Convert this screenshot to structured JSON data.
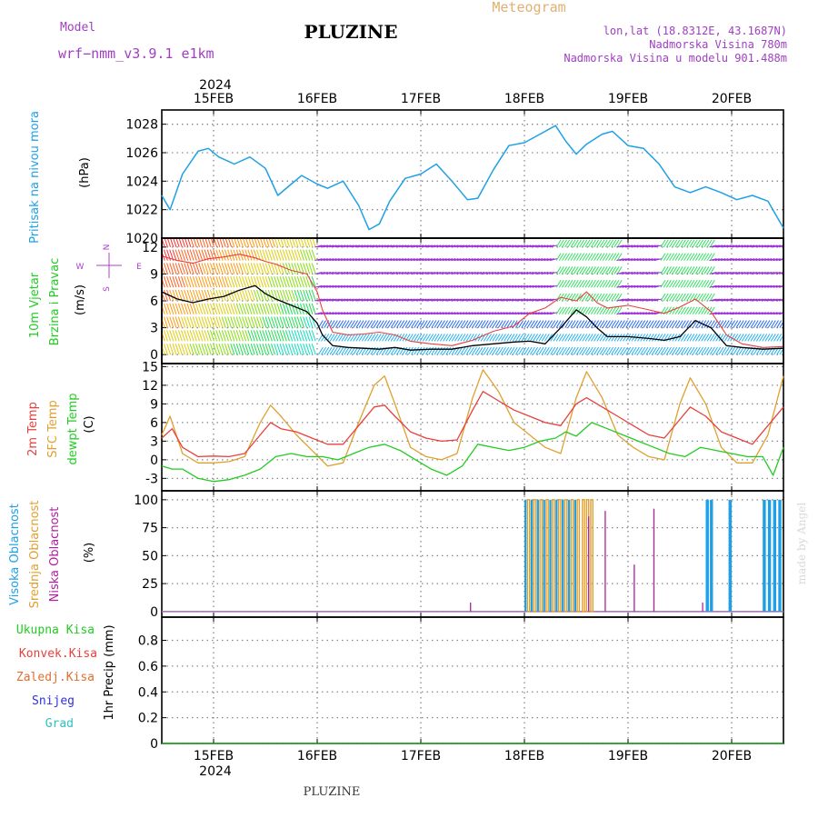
{
  "header": {
    "model_label": "Model",
    "model_name": "wrf−nmm_v3.9.1  e1km",
    "title": "PLUZINE",
    "subtitle": "Meteogram",
    "lonlat": "lon,lat (18.8312E, 43.1687N)",
    "elevation": "Nadmorska Visina 780m",
    "model_elevation": "Nadmorska Visina u modelu 901.488m",
    "year": "2024",
    "footer": "PLUZINE",
    "watermark": "made by Angel"
  },
  "colors": {
    "pressure": "#1ea0e6",
    "t2m": "#e8403c",
    "sfc": "#e0a030",
    "dew": "#22cc22",
    "cloud_high": "#1ea0e6",
    "cloud_mid": "#e0a030",
    "cloud_low": "#b0209e",
    "wind_label": "#22cc22",
    "compass": "#b040d0"
  },
  "x_axis": {
    "dates": [
      "15FEB",
      "16FEB",
      "17FEB",
      "18FEB",
      "19FEB",
      "20FEB"
    ],
    "range_days": [
      14.5,
      20.5
    ]
  },
  "chart_data": [
    {
      "type": "line",
      "id": "pressure",
      "ylabel_left": "Pritisak na nivou mora",
      "ylabel_unit": "(hPa)",
      "yticks": [
        1020,
        1022,
        1024,
        1026,
        1028
      ],
      "ylim": [
        1020,
        1029
      ],
      "series": [
        {
          "color": "#1ea0e6",
          "x": [
            14.5,
            14.58,
            14.7,
            14.85,
            14.95,
            15.05,
            15.2,
            15.35,
            15.5,
            15.62,
            15.75,
            15.85,
            16.0,
            16.1,
            16.25,
            16.4,
            16.5,
            16.6,
            16.7,
            16.85,
            17.0,
            17.15,
            17.3,
            17.45,
            17.55,
            17.7,
            17.85,
            18.0,
            18.15,
            18.3,
            18.4,
            18.5,
            18.6,
            18.75,
            18.85,
            19.0,
            19.15,
            19.3,
            19.45,
            19.6,
            19.75,
            19.9,
            20.05,
            20.2,
            20.35,
            20.5
          ],
          "y": [
            1023.0,
            1022.0,
            1024.5,
            1026.1,
            1026.3,
            1025.7,
            1025.2,
            1025.7,
            1024.9,
            1023.0,
            1023.8,
            1024.4,
            1023.8,
            1023.5,
            1024.0,
            1022.3,
            1020.6,
            1021.0,
            1022.6,
            1024.2,
            1024.5,
            1025.2,
            1024.0,
            1022.7,
            1022.8,
            1024.8,
            1026.5,
            1026.7,
            1027.3,
            1027.9,
            1026.8,
            1025.9,
            1026.6,
            1027.3,
            1027.5,
            1026.5,
            1026.3,
            1025.2,
            1023.6,
            1023.2,
            1023.6,
            1023.2,
            1022.7,
            1023.0,
            1022.6,
            1020.7
          ]
        }
      ]
    },
    {
      "type": "line",
      "id": "wind",
      "ylabel_left": [
        "10m Vjetar",
        "Brzina i Pravac"
      ],
      "ylabel_unit": "(m/s)",
      "compass": [
        "N",
        "S",
        "E",
        "W"
      ],
      "yticks": [
        0,
        3,
        6,
        9,
        12
      ],
      "ylim": [
        -1,
        13
      ],
      "series": [
        {
          "name": "speed",
          "color": "#000000",
          "x": [
            14.5,
            14.65,
            14.8,
            14.95,
            15.1,
            15.25,
            15.4,
            15.5,
            15.6,
            15.75,
            15.9,
            16.0,
            16.05,
            16.15,
            16.3,
            16.45,
            16.6,
            16.75,
            16.9,
            17.1,
            17.3,
            17.5,
            17.7,
            17.9,
            18.05,
            18.2,
            18.35,
            18.5,
            18.6,
            18.7,
            18.8,
            19.0,
            19.2,
            19.35,
            19.5,
            19.65,
            19.8,
            19.95,
            20.1,
            20.3,
            20.5
          ],
          "y": [
            7,
            6.2,
            5.8,
            6.2,
            6.5,
            7.2,
            7.7,
            6.8,
            6.2,
            5.5,
            4.8,
            3.5,
            2.2,
            1.0,
            0.8,
            0.7,
            0.6,
            0.8,
            0.5,
            0.6,
            0.6,
            1.0,
            1.2,
            1.4,
            1.5,
            1.2,
            3.0,
            5.0,
            4.2,
            3.0,
            2.0,
            2.0,
            1.8,
            1.6,
            2.0,
            3.8,
            3.0,
            1.0,
            0.8,
            0.6,
            0.7
          ]
        },
        {
          "name": "gust",
          "color": "#e8403c",
          "x": [
            14.5,
            14.65,
            14.8,
            14.95,
            15.1,
            15.25,
            15.4,
            15.5,
            15.6,
            15.75,
            15.9,
            16.0,
            16.05,
            16.15,
            16.3,
            16.45,
            16.6,
            16.75,
            16.9,
            17.1,
            17.3,
            17.5,
            17.7,
            17.9,
            18.05,
            18.2,
            18.35,
            18.5,
            18.6,
            18.7,
            18.8,
            19.0,
            19.2,
            19.35,
            19.5,
            19.65,
            19.8,
            19.95,
            20.1,
            20.3,
            20.5
          ],
          "y": [
            11,
            10.5,
            10.2,
            10.7,
            10.9,
            11.2,
            10.8,
            10.4,
            10.1,
            9.4,
            9.0,
            7.0,
            5.0,
            2.5,
            2.2,
            2.3,
            2.5,
            2.2,
            1.5,
            1.2,
            1.0,
            1.6,
            2.6,
            3.2,
            4.6,
            5.2,
            6.4,
            6.0,
            7.0,
            5.8,
            5.2,
            5.5,
            5.0,
            4.6,
            5.3,
            6.2,
            4.8,
            2.2,
            1.2,
            0.8,
            0.9
          ]
        }
      ]
    },
    {
      "type": "line",
      "id": "temperature",
      "ylabel_left": [
        "2m Temp",
        "SFC Temp",
        "dewpt Temp"
      ],
      "ylabel_unit": "(C)",
      "yticks": [
        -3,
        0,
        3,
        6,
        9,
        12,
        15
      ],
      "ylim": [
        -5,
        15.5
      ],
      "series": [
        {
          "name": "2m Temp",
          "color": "#e8403c",
          "x": [
            14.5,
            14.6,
            14.7,
            14.85,
            15.0,
            15.15,
            15.3,
            15.45,
            15.55,
            15.65,
            15.8,
            15.95,
            16.1,
            16.25,
            16.4,
            16.55,
            16.65,
            16.75,
            16.9,
            17.05,
            17.2,
            17.35,
            17.5,
            17.6,
            17.75,
            17.9,
            18.05,
            18.2,
            18.35,
            18.5,
            18.6,
            18.75,
            18.9,
            19.05,
            19.2,
            19.35,
            19.5,
            19.6,
            19.75,
            19.9,
            20.05,
            20.2,
            20.35,
            20.5
          ],
          "y": [
            3.5,
            5.0,
            2.0,
            0.5,
            0.6,
            0.5,
            1.0,
            4.0,
            6.0,
            5.0,
            4.5,
            3.5,
            2.5,
            2.5,
            5.5,
            8.5,
            8.8,
            7.0,
            4.5,
            3.5,
            3.0,
            3.2,
            8.0,
            11.0,
            9.5,
            8.0,
            7.0,
            6.0,
            5.5,
            9.0,
            10.0,
            8.5,
            7.0,
            5.5,
            4.0,
            3.5,
            6.5,
            8.5,
            7.0,
            4.5,
            3.5,
            2.5,
            5.5,
            8.5
          ]
        },
        {
          "name": "SFC Temp",
          "color": "#e0a030",
          "x": [
            14.5,
            14.58,
            14.7,
            14.85,
            15.0,
            15.15,
            15.3,
            15.45,
            15.55,
            15.65,
            15.8,
            15.95,
            16.1,
            16.25,
            16.4,
            16.55,
            16.65,
            16.75,
            16.9,
            17.05,
            17.2,
            17.35,
            17.5,
            17.6,
            17.75,
            17.9,
            18.05,
            18.2,
            18.35,
            18.5,
            18.6,
            18.75,
            18.9,
            19.05,
            19.2,
            19.35,
            19.5,
            19.6,
            19.75,
            19.9,
            20.05,
            20.2,
            20.35,
            20.5
          ],
          "y": [
            4.0,
            7.0,
            1.0,
            -0.5,
            -0.5,
            -0.3,
            0.5,
            6.0,
            8.8,
            7.0,
            4.0,
            1.5,
            -1.0,
            -0.5,
            6.0,
            12.0,
            13.5,
            9.0,
            2.0,
            0.5,
            0.0,
            1.0,
            10.0,
            14.5,
            11.0,
            6.0,
            4.0,
            2.0,
            1.0,
            10.0,
            14.2,
            10.0,
            4.0,
            2.0,
            0.5,
            0.0,
            9.0,
            13.2,
            9.0,
            2.0,
            -0.5,
            -0.5,
            4.0,
            13.5
          ]
        },
        {
          "name": "dewpt Temp",
          "color": "#22cc22",
          "x": [
            14.5,
            14.6,
            14.7,
            14.85,
            15.0,
            15.15,
            15.3,
            15.45,
            15.6,
            15.75,
            15.9,
            16.05,
            16.2,
            16.35,
            16.5,
            16.65,
            16.8,
            16.95,
            17.1,
            17.25,
            17.4,
            17.55,
            17.7,
            17.85,
            18.0,
            18.15,
            18.3,
            18.4,
            18.5,
            18.65,
            18.8,
            18.95,
            19.1,
            19.25,
            19.4,
            19.55,
            19.7,
            19.85,
            20.0,
            20.15,
            20.3,
            20.4,
            20.5
          ],
          "y": [
            -1.0,
            -1.5,
            -1.5,
            -3.0,
            -3.5,
            -3.2,
            -2.5,
            -1.5,
            0.5,
            1.0,
            0.5,
            0.5,
            0.0,
            1.0,
            2.0,
            2.5,
            1.5,
            0.0,
            -1.5,
            -2.5,
            -1.0,
            2.5,
            2.0,
            1.5,
            2.0,
            3.0,
            3.5,
            4.5,
            3.8,
            6.0,
            5.0,
            4.0,
            3.0,
            2.0,
            1.0,
            0.5,
            2.0,
            1.5,
            1.0,
            0.5,
            0.5,
            -2.5,
            2.0
          ]
        }
      ]
    },
    {
      "type": "bar",
      "id": "cloud",
      "ylabel_left": [
        "Visoka Oblacnost",
        "Srednja Oblacnost",
        "Niska Oblacnost"
      ],
      "ylabel_unit": "(%)",
      "yticks": [
        0,
        25,
        50,
        75,
        100
      ],
      "ylim": [
        -5,
        108
      ],
      "high": [
        [
          18.0,
          18.02
        ],
        [
          18.06,
          18.08
        ],
        [
          18.12,
          18.14
        ],
        [
          18.18,
          18.2
        ],
        [
          18.24,
          18.26
        ],
        [
          18.3,
          18.32
        ],
        [
          18.36,
          18.38
        ],
        [
          18.42,
          18.44
        ],
        [
          18.48,
          18.5
        ],
        [
          19.75,
          19.78
        ],
        [
          19.79,
          19.82
        ],
        [
          19.97,
          20.0
        ],
        [
          20.3,
          20.33
        ],
        [
          20.35,
          20.38
        ],
        [
          20.4,
          20.43
        ],
        [
          20.45,
          20.48
        ]
      ],
      "mid": [
        [
          18.03,
          18.05
        ],
        [
          18.09,
          18.11
        ],
        [
          18.15,
          18.17
        ],
        [
          18.21,
          18.23
        ],
        [
          18.27,
          18.29
        ],
        [
          18.33,
          18.35
        ],
        [
          18.39,
          18.41
        ],
        [
          18.45,
          18.47
        ],
        [
          18.51,
          18.53
        ],
        [
          18.56,
          18.58
        ],
        [
          18.6,
          18.62
        ],
        [
          18.64,
          18.66
        ]
      ],
      "low": [
        {
          "x": 17.48,
          "v": 8
        },
        {
          "x": 18.62,
          "v": 85
        },
        {
          "x": 18.78,
          "v": 90
        },
        {
          "x": 19.06,
          "v": 42
        },
        {
          "x": 19.25,
          "v": 92
        },
        {
          "x": 19.72,
          "v": 8
        }
      ]
    },
    {
      "type": "line",
      "id": "precip",
      "legend": [
        "Ukupna Kisa",
        "Konvek.Kisa",
        "Zaledj.Kisa",
        "Snijeg",
        "Grad"
      ],
      "legend_colors": [
        "#22cc22",
        "#e8403c",
        "#e07030",
        "#3030e0",
        "#30c0c0"
      ],
      "ylabel_unit": "1hr Precip (mm)",
      "yticks": [
        0,
        0.2,
        0.4,
        0.6,
        0.8
      ],
      "ylim": [
        0,
        0.98
      ],
      "series": [
        {
          "name": "Ukupna Kisa",
          "color": "#22cc22",
          "x": [
            14.5,
            20.5
          ],
          "y": [
            0,
            0
          ]
        }
      ]
    }
  ]
}
